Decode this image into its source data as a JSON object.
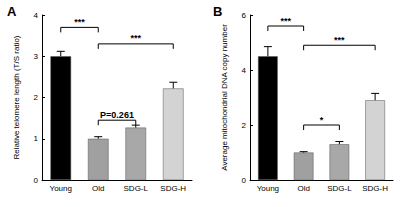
{
  "chart_data": [
    {
      "type": "bar",
      "title": "A",
      "y_label": "Relative telomere length (T/S ratio)",
      "categories": [
        "Young",
        "Old",
        "SDG-L",
        "SDG-H"
      ],
      "values": [
        3.0,
        1.0,
        1.27,
        2.22
      ],
      "errors": [
        0.12,
        0.05,
        0.06,
        0.15
      ],
      "colors": [
        "#000000",
        "#a0a0a0",
        "#a8a8a8",
        "#d3d3d3"
      ],
      "ylim": [
        0,
        4
      ],
      "yticks": [
        0,
        1,
        2,
        3,
        4
      ],
      "grid": false,
      "annotations": [
        {
          "text": "***",
          "from": "Young",
          "to": "Old",
          "y": 3.7
        },
        {
          "text": "***",
          "from": "Old",
          "to": "SDG-H",
          "y": 3.3
        },
        {
          "text": "P=0.261",
          "from": "Old",
          "to": "SDG-L",
          "y": 1.45
        }
      ]
    },
    {
      "type": "bar",
      "title": "B",
      "y_label": "Average mitochondrial DNA copy number",
      "categories": [
        "Young",
        "Old",
        "SDG-L",
        "SDG-H"
      ],
      "values": [
        4.5,
        1.0,
        1.3,
        2.9
      ],
      "errors": [
        0.35,
        0.03,
        0.1,
        0.25
      ],
      "colors": [
        "#000000",
        "#a0a0a0",
        "#a8a8a8",
        "#d3d3d3"
      ],
      "ylim": [
        0,
        6
      ],
      "yticks": [
        0,
        2,
        4,
        6
      ],
      "grid": false,
      "annotations": [
        {
          "text": "***",
          "from": "Young",
          "to": "Old",
          "y": 5.6
        },
        {
          "text": "***",
          "from": "Old",
          "to": "SDG-H",
          "y": 4.9
        },
        {
          "text": "*",
          "from": "Old",
          "to": "SDG-L",
          "y": 2.0
        }
      ]
    }
  ]
}
